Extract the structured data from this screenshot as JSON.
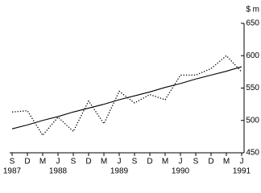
{
  "chart_data": {
    "type": "line",
    "y_unit": "$ m",
    "categories": [
      "S",
      "D",
      "M",
      "J",
      "S",
      "D",
      "M",
      "J",
      "S",
      "D",
      "M",
      "J",
      "S",
      "D",
      "M",
      "J"
    ],
    "year_labels": [
      "1987",
      null,
      null,
      "1988",
      null,
      null,
      null,
      "1989",
      null,
      null,
      null,
      "1990",
      null,
      null,
      null,
      "1991"
    ],
    "series": [
      {
        "color": "#000000",
        "style": "dotted",
        "values": [
          513,
          515,
          477,
          505,
          483,
          530,
          495,
          545,
          527,
          540,
          532,
          570,
          570,
          580,
          600,
          575
        ]
      },
      {
        "color": "#000000",
        "style": "solid",
        "values": [
          487,
          493,
          500,
          506,
          513,
          519,
          525,
          532,
          538,
          544,
          551,
          557,
          564,
          570,
          576,
          583
        ]
      }
    ],
    "ylim": [
      450,
      650
    ],
    "yticks": [
      450,
      500,
      550,
      600,
      650
    ],
    "grid": false
  }
}
